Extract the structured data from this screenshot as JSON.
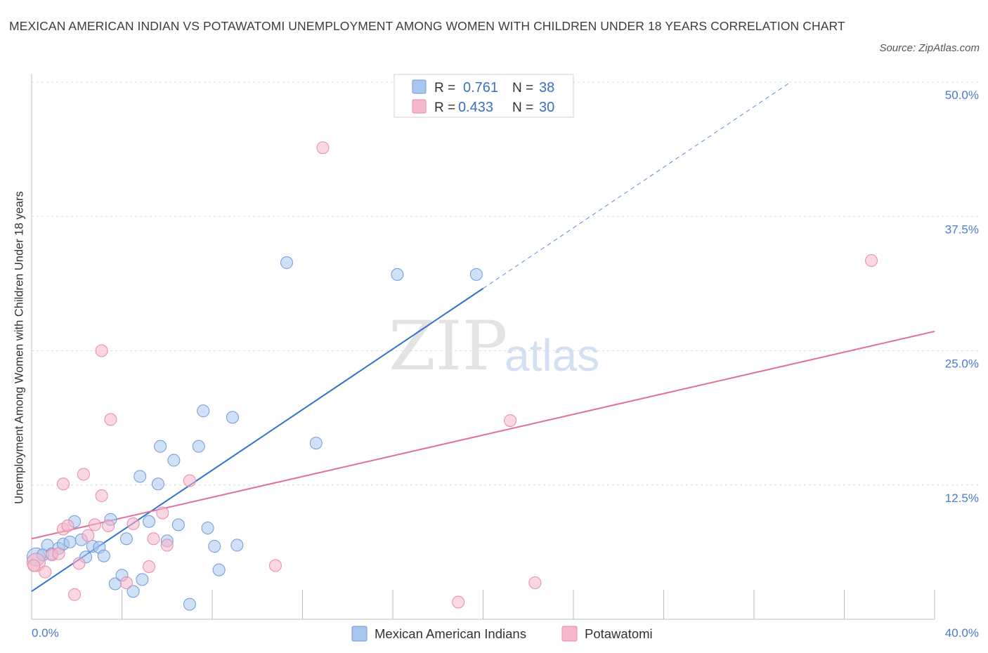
{
  "chart_data": {
    "type": "scatter",
    "title": "MEXICAN AMERICAN INDIAN VS POTAWATOMI UNEMPLOYMENT AMONG WOMEN WITH CHILDREN UNDER 18 YEARS CORRELATION CHART",
    "source": "Source: ZipAtlas.com",
    "xlabel": "",
    "ylabel": "Unemployment Among Women with Children Under 18 years",
    "xlim": [
      0,
      40
    ],
    "ylim": [
      0,
      50
    ],
    "x_tick_labels": [
      "0.0%",
      "40.0%"
    ],
    "y_ticks": [
      12.5,
      25.0,
      37.5,
      50.0
    ],
    "y_tick_labels": [
      "12.5%",
      "25.0%",
      "37.5%",
      "50.0%"
    ],
    "grid": true,
    "watermark": {
      "part1": "ZIP",
      "part2": "atlas"
    },
    "legend": {
      "r_label": "R =",
      "n_label": "N =",
      "entries": [
        {
          "name": "Mexican American Indians",
          "r": "0.761",
          "n": "38",
          "color": "#a8c6f0",
          "edge": "#6f9ad8"
        },
        {
          "name": "Potawatomi",
          "r": "0.433",
          "n": "30",
          "color": "#f6b7cb",
          "edge": "#e68aa8"
        }
      ]
    },
    "series": [
      {
        "name": "Mexican American Indians",
        "color": "#a8c6f0",
        "edge": "#6f9ad8",
        "line_color": "#2f72cf",
        "trend": {
          "x1": 0.0,
          "y1": 2.6,
          "x2": 20.0,
          "y2": 30.8,
          "dashed_to_x": 40.0
        },
        "points": [
          {
            "x": 0.2,
            "y": 5.8,
            "big": true
          },
          {
            "x": 0.5,
            "y": 6.0
          },
          {
            "x": 0.7,
            "y": 6.9
          },
          {
            "x": 0.9,
            "y": 6.1
          },
          {
            "x": 1.2,
            "y": 6.6
          },
          {
            "x": 1.4,
            "y": 7.0
          },
          {
            "x": 1.7,
            "y": 7.2
          },
          {
            "x": 1.9,
            "y": 9.1
          },
          {
            "x": 2.2,
            "y": 7.4
          },
          {
            "x": 2.4,
            "y": 5.8
          },
          {
            "x": 2.7,
            "y": 6.8
          },
          {
            "x": 3.0,
            "y": 6.7
          },
          {
            "x": 3.2,
            "y": 5.9
          },
          {
            "x": 3.5,
            "y": 9.3
          },
          {
            "x": 3.7,
            "y": 3.3
          },
          {
            "x": 4.0,
            "y": 4.1
          },
          {
            "x": 4.2,
            "y": 7.5
          },
          {
            "x": 4.5,
            "y": 2.6
          },
          {
            "x": 4.9,
            "y": 3.7
          },
          {
            "x": 4.8,
            "y": 13.3
          },
          {
            "x": 5.2,
            "y": 9.1
          },
          {
            "x": 5.6,
            "y": 12.6
          },
          {
            "x": 5.7,
            "y": 16.1
          },
          {
            "x": 6.0,
            "y": 7.3
          },
          {
            "x": 6.3,
            "y": 14.8
          },
          {
            "x": 6.5,
            "y": 8.8
          },
          {
            "x": 7.0,
            "y": 1.4
          },
          {
            "x": 7.4,
            "y": 16.1
          },
          {
            "x": 7.6,
            "y": 19.4
          },
          {
            "x": 7.8,
            "y": 8.5
          },
          {
            "x": 8.1,
            "y": 6.8
          },
          {
            "x": 8.3,
            "y": 4.6
          },
          {
            "x": 8.9,
            "y": 18.8
          },
          {
            "x": 9.1,
            "y": 6.9
          },
          {
            "x": 11.3,
            "y": 33.2
          },
          {
            "x": 12.6,
            "y": 16.4
          },
          {
            "x": 16.2,
            "y": 32.1
          },
          {
            "x": 19.7,
            "y": 32.1
          }
        ]
      },
      {
        "name": "Potawatomi",
        "color": "#f6b7cb",
        "edge": "#e68aa8",
        "line_color": "#e0709a",
        "trend": {
          "x1": 0.0,
          "y1": 7.5,
          "x2": 40.0,
          "y2": 26.8
        },
        "points": [
          {
            "x": 0.2,
            "y": 5.3,
            "big": true
          },
          {
            "x": 0.6,
            "y": 4.4
          },
          {
            "x": 0.9,
            "y": 6.0
          },
          {
            "x": 1.2,
            "y": 6.1
          },
          {
            "x": 1.4,
            "y": 8.4
          },
          {
            "x": 1.4,
            "y": 12.6
          },
          {
            "x": 1.6,
            "y": 8.7
          },
          {
            "x": 1.9,
            "y": 2.3
          },
          {
            "x": 2.1,
            "y": 5.2
          },
          {
            "x": 2.3,
            "y": 13.5
          },
          {
            "x": 2.5,
            "y": 7.8
          },
          {
            "x": 2.8,
            "y": 8.8
          },
          {
            "x": 3.1,
            "y": 11.5
          },
          {
            "x": 3.1,
            "y": 25.0
          },
          {
            "x": 3.4,
            "y": 8.7
          },
          {
            "x": 3.5,
            "y": 18.6
          },
          {
            "x": 4.2,
            "y": 3.4
          },
          {
            "x": 4.5,
            "y": 8.9
          },
          {
            "x": 5.2,
            "y": 4.9
          },
          {
            "x": 5.4,
            "y": 7.5
          },
          {
            "x": 5.8,
            "y": 9.9
          },
          {
            "x": 6.0,
            "y": 6.9
          },
          {
            "x": 7.0,
            "y": 12.9
          },
          {
            "x": 10.8,
            "y": 5.0
          },
          {
            "x": 12.9,
            "y": 43.9
          },
          {
            "x": 18.9,
            "y": 1.6
          },
          {
            "x": 21.2,
            "y": 18.5
          },
          {
            "x": 22.3,
            "y": 3.4
          },
          {
            "x": 37.2,
            "y": 33.4
          },
          {
            "x": 0.1,
            "y": 5.0
          }
        ]
      }
    ]
  }
}
